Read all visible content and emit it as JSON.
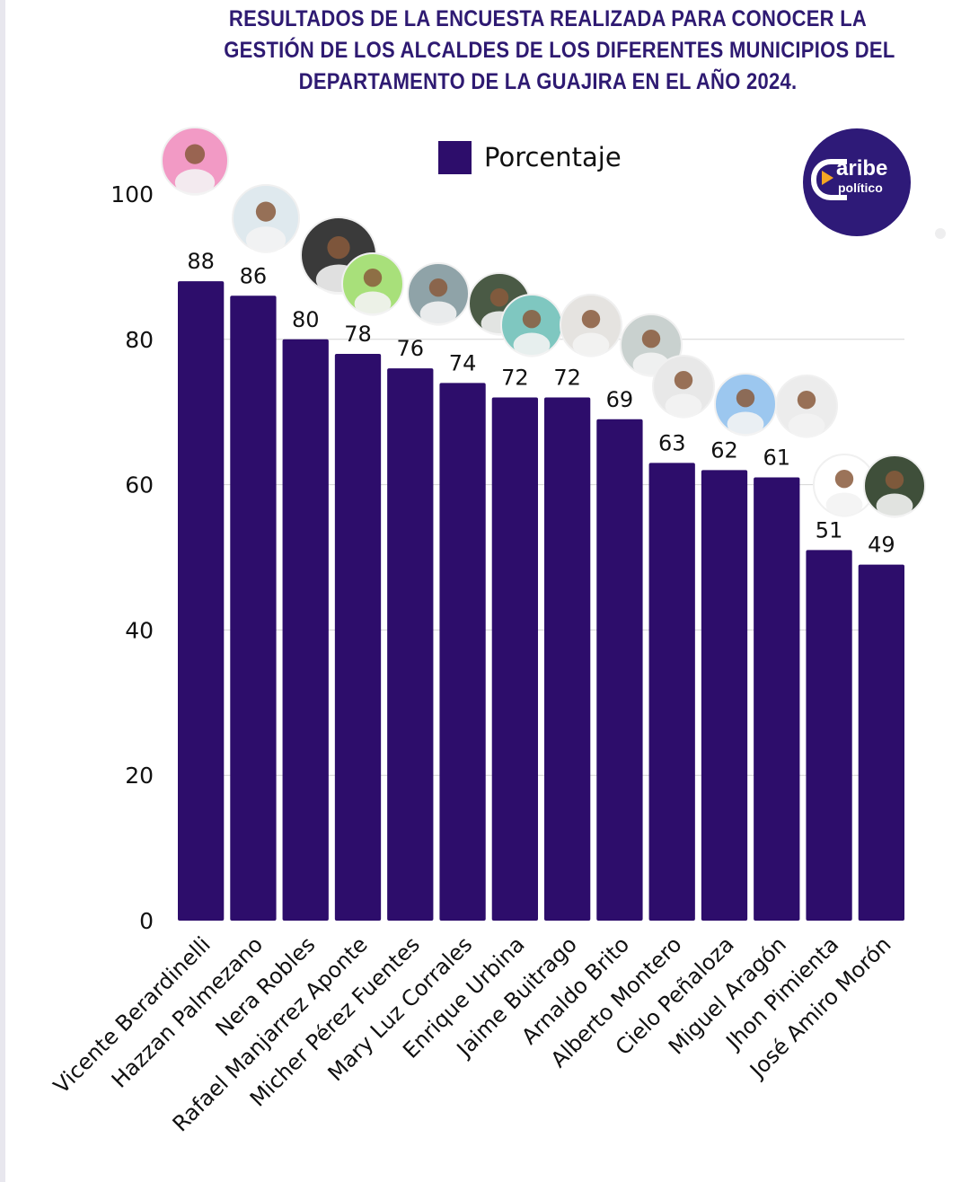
{
  "title_lines": [
    "RESULTADOS DE LA ENCUESTA REALIZADA PARA CONOCER LA",
    "GESTIÓN DE LOS ALCALDES DE LOS DIFERENTES MUNICIPIOS DEL",
    "DEPARTAMENTO DE LA GUAJIRA EN EL AÑO 2024."
  ],
  "logo": {
    "word1": "aribe",
    "word2": "político",
    "brand_name": "Caribe político"
  },
  "colors": {
    "bar": "#2d0d6b",
    "title": "#2e1a72",
    "logo_bg": "#2e1a78",
    "logo_accent": "#f4a623",
    "grid": "#d4d4d4"
  },
  "chart_data": {
    "type": "bar",
    "title": "RESULTADOS DE LA ENCUESTA REALIZADA PARA CONOCER LA GESTIÓN DE LOS ALCALDES DE LOS DIFERENTES MUNICIPIOS DEL DEPARTAMENTO DE LA GUAJIRA EN EL AÑO 2024.",
    "xlabel": "",
    "ylabel": "",
    "categories": [
      "Vicente Berardinelli",
      "Hazzan Palmezano",
      "Nera Robles",
      "Rafael Manjarrez Aponte",
      "Micher Pérez Fuentes",
      "Mary Luz Corrales",
      "Enrique Urbina",
      "Jaime Buitrago",
      "Arnaldo Brito",
      "Alberto Montero",
      "Cielo Peñaloza",
      "Miguel Aragón",
      "Jhon Pimienta",
      "José Amiro Morón"
    ],
    "series": [
      {
        "name": "Porcentaje",
        "values": [
          88,
          86,
          80,
          78,
          76,
          74,
          72,
          72,
          69,
          63,
          62,
          61,
          51,
          49
        ]
      }
    ],
    "data_labels": [
      "88",
      "86",
      "80",
      "78",
      "76",
      "74",
      "72",
      "72",
      "69",
      "63",
      "62",
      "61",
      "51",
      "49"
    ],
    "ylim": [
      0,
      100
    ],
    "yticks": [
      0,
      20,
      40,
      60,
      80,
      100
    ],
    "grid": true,
    "legend": {
      "position": "top-center",
      "entries": [
        "Porcentaje"
      ]
    },
    "annotations": "circular portrait photo of each mayor above its bar"
  }
}
